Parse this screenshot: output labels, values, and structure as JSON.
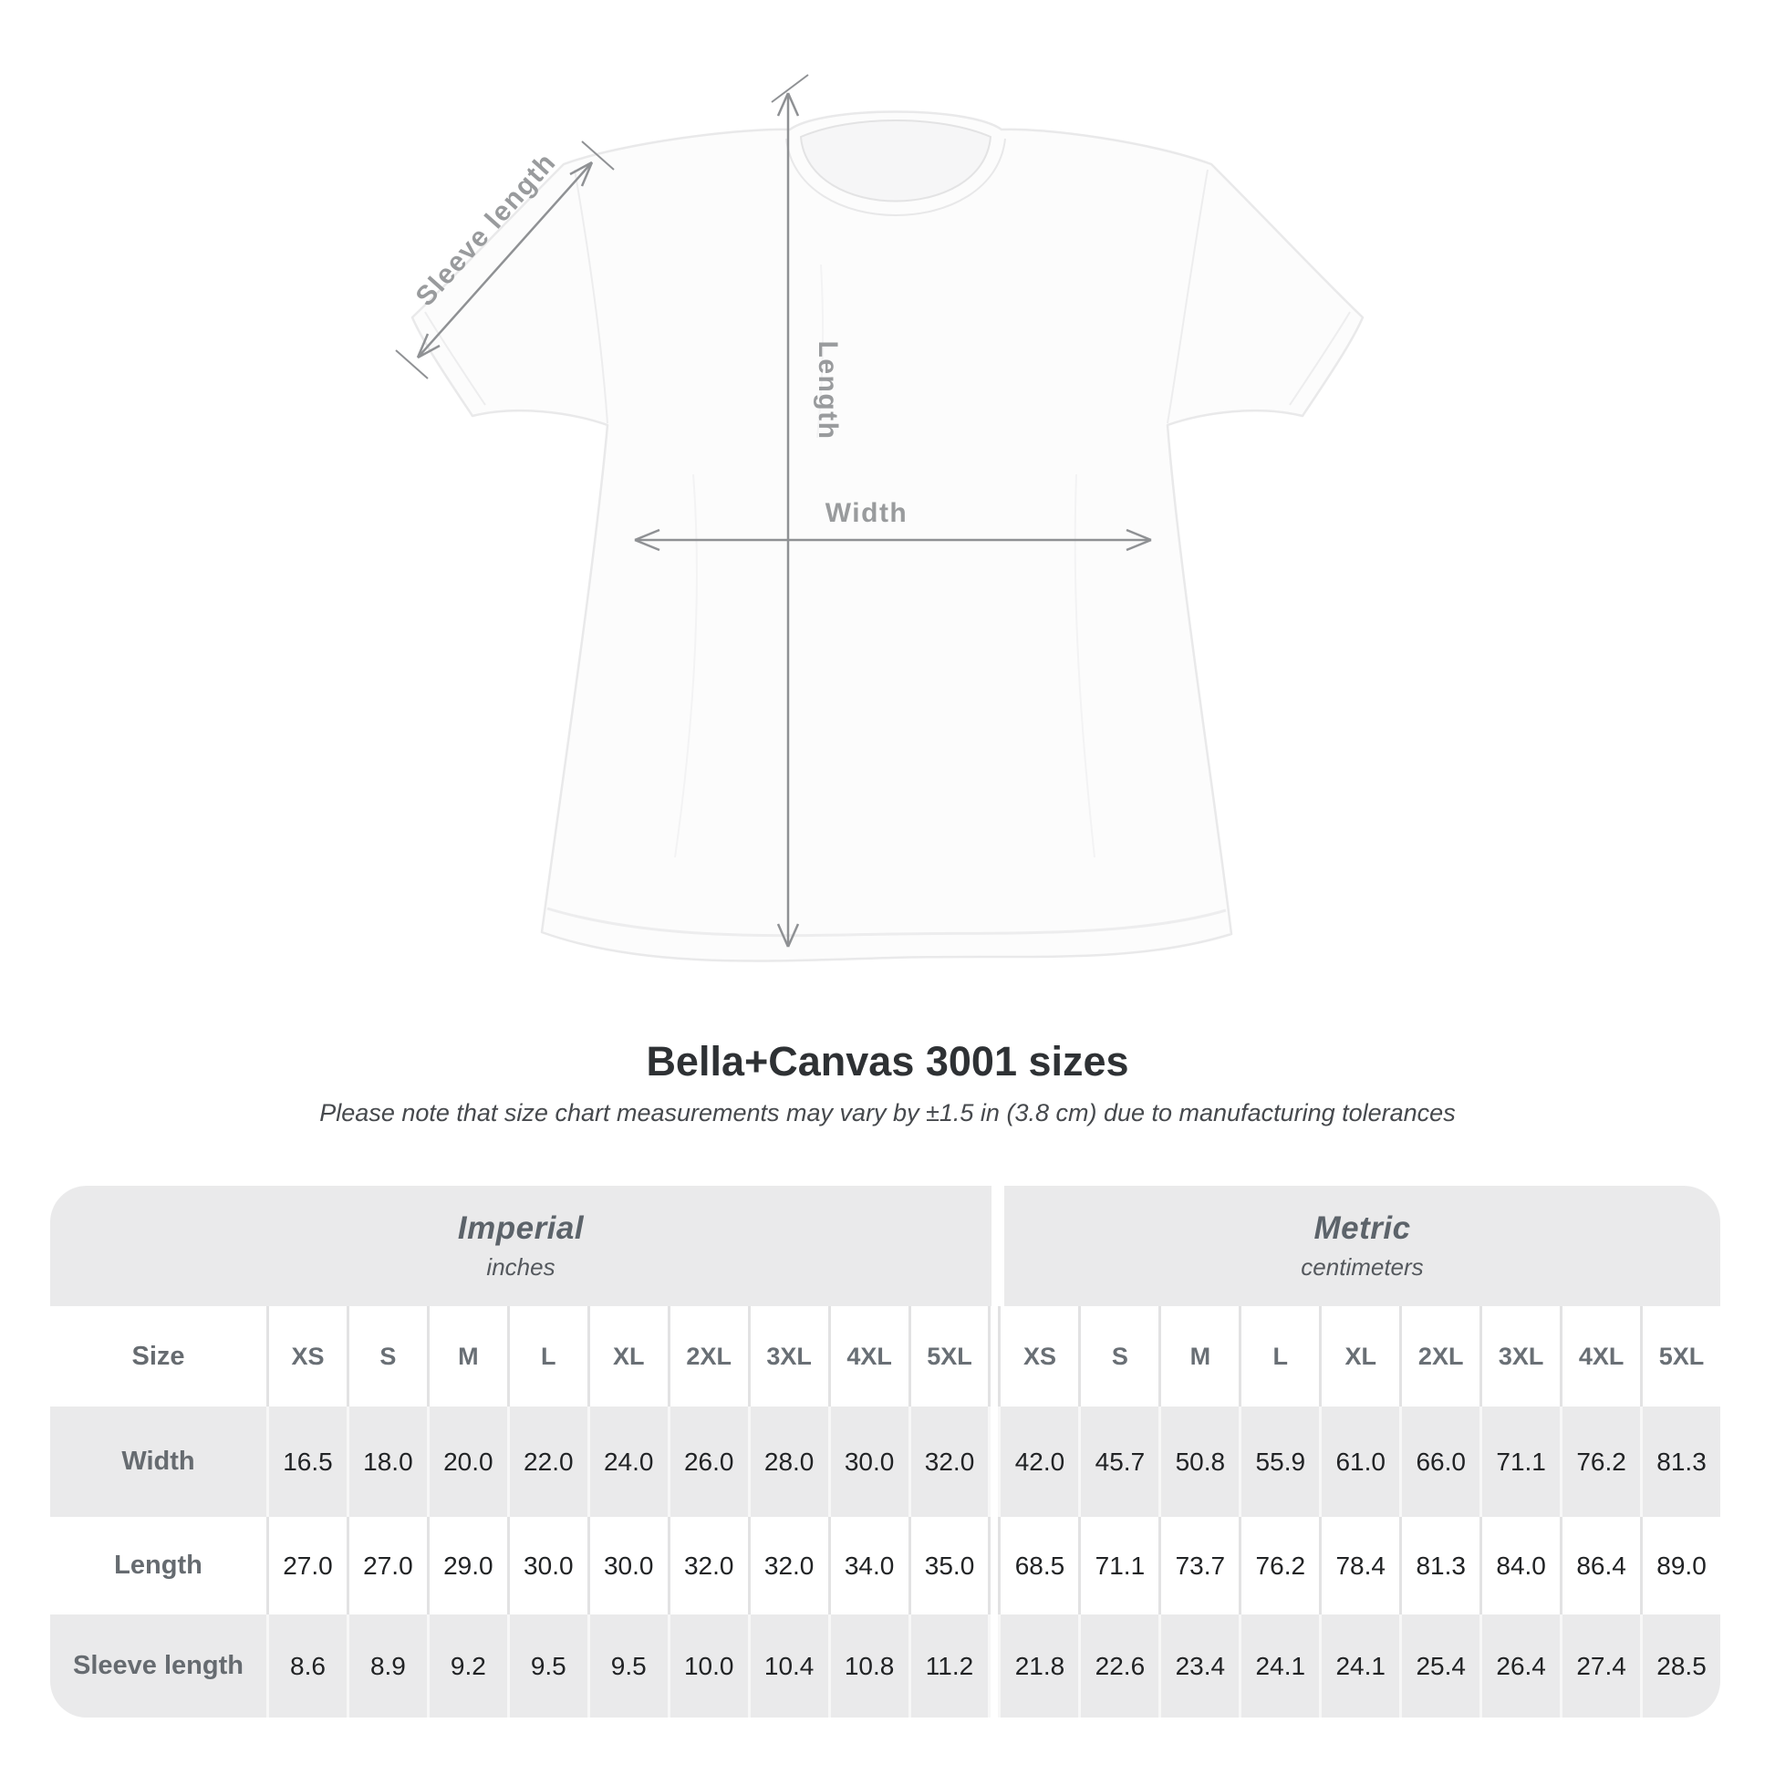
{
  "diagram": {
    "labels": {
      "sleeve_length": "Sleeve length",
      "length": "Length",
      "width": "Width"
    }
  },
  "title": "Bella+Canvas 3001 sizes",
  "subtitle": "Please note that size chart measurements may vary by ±1.5 in (3.8 cm) due to manufacturing tolerances",
  "table": {
    "size_header": "Size",
    "groups": [
      {
        "label": "Imperial",
        "unit": "inches"
      },
      {
        "label": "Metric",
        "unit": "centimeters"
      }
    ],
    "sizes": [
      "XS",
      "S",
      "M",
      "L",
      "XL",
      "2XL",
      "3XL",
      "4XL",
      "5XL"
    ],
    "rows": [
      {
        "label": "Width",
        "imperial": [
          "16.5",
          "18.0",
          "20.0",
          "22.0",
          "24.0",
          "26.0",
          "28.0",
          "30.0",
          "32.0"
        ],
        "metric": [
          "42.0",
          "45.7",
          "50.8",
          "55.9",
          "61.0",
          "66.0",
          "71.1",
          "76.2",
          "81.3"
        ]
      },
      {
        "label": "Length",
        "imperial": [
          "27.0",
          "27.0",
          "29.0",
          "30.0",
          "30.0",
          "32.0",
          "32.0",
          "34.0",
          "35.0"
        ],
        "metric": [
          "68.5",
          "71.1",
          "73.7",
          "76.2",
          "78.4",
          "81.3",
          "84.0",
          "86.4",
          "89.0"
        ]
      },
      {
        "label": "Sleeve length",
        "imperial": [
          "8.6",
          "8.9",
          "9.2",
          "9.5",
          "9.5",
          "10.0",
          "10.4",
          "10.8",
          "11.2"
        ],
        "metric": [
          "21.8",
          "22.6",
          "23.4",
          "24.1",
          "24.1",
          "25.4",
          "26.4",
          "27.4",
          "28.5"
        ]
      }
    ]
  },
  "colors": {
    "row_gray": "#eaeaeb",
    "row_white": "#ffffff",
    "label_text": "#666b70",
    "value_text": "#212325",
    "annotation": "#999b9d",
    "arrow": "#8f9194",
    "title_text": "#2e3134"
  },
  "chart_data": {
    "type": "table",
    "title": "Bella+Canvas 3001 sizes",
    "note": "Please note that size chart measurements may vary by ±1.5 in (3.8 cm) due to manufacturing tolerances",
    "column_groups": [
      "Imperial (inches)",
      "Metric (centimeters)"
    ],
    "columns": [
      "XS",
      "S",
      "M",
      "L",
      "XL",
      "2XL",
      "3XL",
      "4XL",
      "5XL"
    ],
    "rows": [
      {
        "label": "Width",
        "imperial_in": [
          16.5,
          18.0,
          20.0,
          22.0,
          24.0,
          26.0,
          28.0,
          30.0,
          32.0
        ],
        "metric_cm": [
          42.0,
          45.7,
          50.8,
          55.9,
          61.0,
          66.0,
          71.1,
          76.2,
          81.3
        ]
      },
      {
        "label": "Length",
        "imperial_in": [
          27.0,
          27.0,
          29.0,
          30.0,
          30.0,
          32.0,
          32.0,
          34.0,
          35.0
        ],
        "metric_cm": [
          68.5,
          71.1,
          73.7,
          76.2,
          78.4,
          81.3,
          84.0,
          86.4,
          89.0
        ]
      },
      {
        "label": "Sleeve length",
        "imperial_in": [
          8.6,
          8.9,
          9.2,
          9.5,
          9.5,
          10.0,
          10.4,
          10.8,
          11.2
        ],
        "metric_cm": [
          21.8,
          22.6,
          23.4,
          24.1,
          24.1,
          25.4,
          26.4,
          27.4,
          28.5
        ]
      }
    ]
  }
}
